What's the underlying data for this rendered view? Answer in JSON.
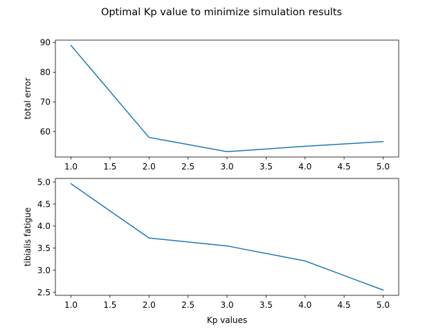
{
  "title": "Optimal Kp value to minimize simulation results",
  "chart_data": [
    {
      "type": "line",
      "x": [
        1.0,
        2.0,
        3.0,
        4.0,
        5.0
      ],
      "series": [
        {
          "values": [
            89.0,
            58.0,
            53.2,
            55.0,
            56.6
          ],
          "color": "#1f77b4"
        }
      ],
      "xlabel": "",
      "ylabel": "total error",
      "xlim": [
        0.8,
        5.2
      ],
      "ylim": [
        51.4,
        90.8
      ],
      "xticks": [
        1.0,
        1.5,
        2.0,
        2.5,
        3.0,
        3.5,
        4.0,
        4.5,
        5.0
      ],
      "xtick_labels": [
        "1.0",
        "1.5",
        "2.0",
        "2.5",
        "3.0",
        "3.5",
        "4.0",
        "4.5",
        "5.0"
      ],
      "yticks": [
        60,
        70,
        80,
        90
      ],
      "ytick_labels": [
        "60",
        "70",
        "80",
        "90"
      ],
      "grid": false
    },
    {
      "type": "line",
      "x": [
        1.0,
        2.0,
        3.0,
        4.0,
        5.0
      ],
      "series": [
        {
          "values": [
            4.96,
            3.73,
            3.55,
            3.21,
            2.55
          ],
          "color": "#1f77b4"
        }
      ],
      "xlabel": "Kp values",
      "ylabel": "tibialis fatigue",
      "xlim": [
        0.8,
        5.2
      ],
      "ylim": [
        2.43,
        5.08
      ],
      "xticks": [
        1.0,
        1.5,
        2.0,
        2.5,
        3.0,
        3.5,
        4.0,
        4.5,
        5.0
      ],
      "xtick_labels": [
        "1.0",
        "1.5",
        "2.0",
        "2.5",
        "3.0",
        "3.5",
        "4.0",
        "4.5",
        "5.0"
      ],
      "yticks": [
        2.5,
        3.0,
        3.5,
        4.0,
        4.5,
        5.0
      ],
      "ytick_labels": [
        "2.5",
        "3.0",
        "3.5",
        "4.0",
        "4.5",
        "5.0"
      ],
      "grid": false
    }
  ]
}
